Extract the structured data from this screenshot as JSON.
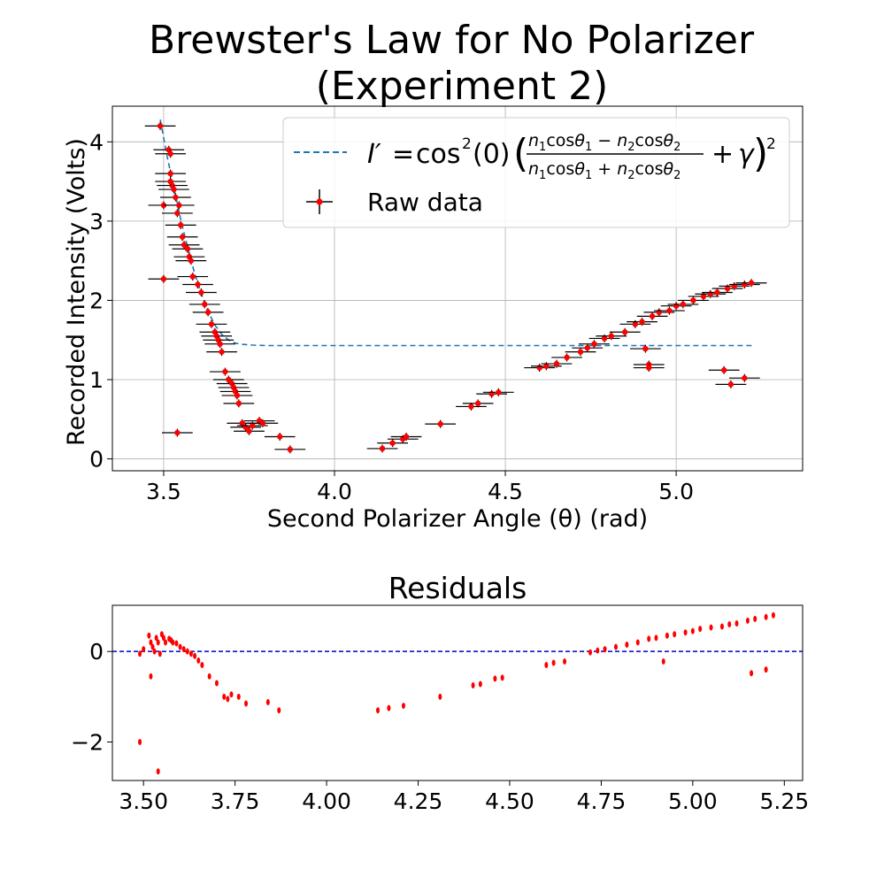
{
  "chart_data": [
    {
      "type": "scatter",
      "title_line1": "Brewster's Law for No Polarizer",
      "title_line2": "(Experiment 2)",
      "xlabel": "Second Polarizer Angle (θ) (rad)",
      "ylabel": "Recorded Intensity (Volts)",
      "xlim": [
        3.35,
        5.37
      ],
      "ylim": [
        -0.15,
        4.45
      ],
      "xticks": [
        "3.5",
        "4.0",
        "4.5",
        "5.0"
      ],
      "yticks": [
        "0",
        "1",
        "2",
        "3",
        "4"
      ],
      "grid": true,
      "legend_position": "upper right",
      "legend": {
        "fit_label": "I′ = cos²(0)((n₁cosθ₁ − n₂cosθ₂)/(n₁cosθ₁ + n₂cosθ₂) + γ)²",
        "data_label": "Raw data"
      },
      "colors": {
        "data": "#ff0000",
        "errorbar": "#000000",
        "fit": "#1f77b4",
        "grid": "#b0b0b0"
      },
      "fit_curve": {
        "name": "I′ = cos²(0)((n₁cosθ₁ − n₂cosθ₂)/(n₁cosθ₁ + n₂cosθ₂) + γ)²",
        "style": "dashed",
        "x": [
          3.49,
          3.51,
          3.53,
          3.55,
          3.57,
          3.59,
          3.61,
          3.63,
          3.65,
          3.67,
          3.69,
          3.71,
          3.73,
          3.76,
          3.8,
          3.9,
          4.2,
          4.6,
          5.0,
          5.23
        ],
        "y": [
          4.28,
          3.82,
          3.42,
          3.02,
          2.67,
          2.35,
          2.09,
          1.86,
          1.69,
          1.57,
          1.5,
          1.46,
          1.445,
          1.435,
          1.43,
          1.43,
          1.43,
          1.43,
          1.43,
          1.43
        ]
      },
      "series": [
        {
          "name": "Raw data",
          "x_error": 0.045,
          "y_error": 0.05,
          "x": [
            3.49,
            3.5,
            3.515,
            3.52,
            3.52,
            3.525,
            3.53,
            3.535,
            3.54,
            3.545,
            3.55,
            3.555,
            3.56,
            3.57,
            3.575,
            3.58,
            3.585,
            3.6,
            3.61,
            3.62,
            3.63,
            3.64,
            3.65,
            3.655,
            3.66,
            3.665,
            3.67,
            3.68,
            3.69,
            3.7,
            3.705,
            3.71,
            3.715,
            3.72,
            3.73,
            3.74,
            3.75,
            3.76,
            3.78,
            3.79,
            3.84,
            3.87,
            3.54,
            3.5,
            3.52,
            4.14,
            4.17,
            4.2,
            4.21,
            4.31,
            4.4,
            4.42,
            4.46,
            4.48,
            4.6,
            4.62,
            4.65,
            4.68,
            4.72,
            4.74,
            4.76,
            4.79,
            4.81,
            4.85,
            4.88,
            4.9,
            4.93,
            4.95,
            4.98,
            5.0,
            5.02,
            5.05,
            5.08,
            5.1,
            5.12,
            5.15,
            5.17,
            5.2,
            5.22,
            4.91,
            4.92,
            4.92,
            5.14,
            5.16,
            5.2
          ],
          "y": [
            4.2,
            3.2,
            3.9,
            3.85,
            3.6,
            3.45,
            3.4,
            3.3,
            3.1,
            3.2,
            2.95,
            2.8,
            2.7,
            2.65,
            2.55,
            2.5,
            2.3,
            2.2,
            2.1,
            1.95,
            1.85,
            1.7,
            1.6,
            1.55,
            1.5,
            1.45,
            1.35,
            1.1,
            1.0,
            0.95,
            0.9,
            0.85,
            0.8,
            0.7,
            0.45,
            0.4,
            0.35,
            0.42,
            0.48,
            0.45,
            0.28,
            0.12,
            0.33,
            2.27,
            3.5,
            0.13,
            0.2,
            0.25,
            0.28,
            0.44,
            0.66,
            0.7,
            0.82,
            0.84,
            1.15,
            1.17,
            1.2,
            1.28,
            1.35,
            1.4,
            1.45,
            1.52,
            1.55,
            1.6,
            1.7,
            1.73,
            1.8,
            1.85,
            1.87,
            1.93,
            1.95,
            2.0,
            2.05,
            2.08,
            2.1,
            2.15,
            2.18,
            2.2,
            2.22,
            1.39,
            1.19,
            1.15,
            1.12,
            0.94,
            1.02
          ]
        }
      ]
    },
    {
      "type": "scatter",
      "title": "Residuals",
      "xlim": [
        3.415,
        5.3
      ],
      "ylim": [
        -2.85,
        1.02
      ],
      "xticks": [
        "3.50",
        "3.75",
        "4.00",
        "4.25",
        "4.50",
        "4.75",
        "5.00",
        "5.25"
      ],
      "yticks": [
        "0",
        "−2"
      ],
      "reference_line": {
        "y": 0,
        "style": "dashed",
        "color": "#0000cc"
      },
      "series": [
        {
          "name": "",
          "x": [
            3.49,
            3.5,
            3.515,
            3.52,
            3.525,
            3.53,
            3.535,
            3.54,
            3.545,
            3.55,
            3.555,
            3.56,
            3.57,
            3.575,
            3.58,
            3.59,
            3.6,
            3.61,
            3.62,
            3.63,
            3.64,
            3.65,
            3.66,
            3.68,
            3.7,
            3.72,
            3.73,
            3.74,
            3.76,
            3.78,
            3.84,
            3.87,
            3.49,
            3.52,
            3.54,
            4.14,
            4.17,
            4.21,
            4.31,
            4.4,
            4.42,
            4.46,
            4.48,
            4.6,
            4.62,
            4.65,
            4.72,
            4.74,
            4.76,
            4.79,
            4.82,
            4.85,
            4.88,
            4.9,
            4.93,
            4.95,
            4.98,
            5.0,
            5.02,
            5.05,
            5.08,
            5.1,
            5.12,
            5.15,
            5.17,
            5.2,
            5.22,
            4.92,
            5.16,
            5.2
          ],
          "y": [
            -0.05,
            0.05,
            0.35,
            0.2,
            0.1,
            0.0,
            0.3,
            0.2,
            -0.05,
            0.38,
            0.3,
            0.2,
            0.28,
            0.25,
            0.2,
            0.18,
            0.1,
            0.05,
            0.0,
            -0.05,
            -0.1,
            -0.2,
            -0.3,
            -0.55,
            -0.7,
            -1.0,
            -1.05,
            -0.95,
            -1.0,
            -1.15,
            -1.12,
            -1.3,
            -2.0,
            -0.55,
            -2.65,
            -1.3,
            -1.25,
            -1.2,
            -1.0,
            -0.75,
            -0.72,
            -0.6,
            -0.58,
            -0.3,
            -0.25,
            -0.22,
            -0.02,
            0.02,
            0.05,
            0.1,
            0.15,
            0.2,
            0.28,
            0.3,
            0.35,
            0.38,
            0.42,
            0.45,
            0.5,
            0.53,
            0.55,
            0.6,
            0.62,
            0.68,
            0.72,
            0.76,
            0.8,
            -0.22,
            -0.48,
            -0.4
          ]
        }
      ]
    }
  ]
}
